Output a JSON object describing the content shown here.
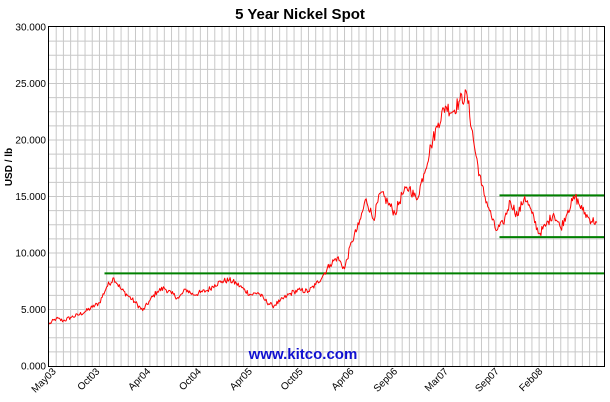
{
  "chart_data": {
    "type": "line",
    "title": "5 Year Nickel Spot",
    "ylabel": "USD / lb",
    "xlabel": "",
    "ylim": [
      0,
      30
    ],
    "y_ticks": [
      "0.000",
      "5.000",
      "10.000",
      "15.000",
      "20.000",
      "25.000",
      "30.000"
    ],
    "x_ticks": [
      "May03",
      "Oct03",
      "Apr04",
      "Oct04",
      "Apr05",
      "Oct05",
      "Apr06",
      "Sep06",
      "Mar07",
      "Sep07",
      "Feb08"
    ],
    "grid": true,
    "colors": {
      "series": "#ff0000",
      "support": "#008000",
      "grid": "#c8c8c8",
      "watermark": "#1010d0"
    },
    "watermark": "www.kitco.com",
    "series": [
      {
        "values": [
          [
            0,
            3.7
          ],
          [
            1,
            4.2
          ],
          [
            2,
            4.0
          ],
          [
            3,
            4.3
          ],
          [
            4,
            4.5
          ],
          [
            5,
            4.8
          ],
          [
            6,
            5.2
          ],
          [
            7,
            5.6
          ],
          [
            8,
            7.0
          ],
          [
            9,
            7.8
          ],
          [
            10,
            6.8
          ],
          [
            11,
            6.2
          ],
          [
            12,
            5.6
          ],
          [
            13,
            4.9
          ],
          [
            14,
            5.8
          ],
          [
            15,
            6.6
          ],
          [
            16,
            6.9
          ],
          [
            17,
            6.4
          ],
          [
            18,
            6.0
          ],
          [
            19,
            6.8
          ],
          [
            20,
            6.3
          ],
          [
            21,
            6.5
          ],
          [
            22,
            6.7
          ],
          [
            23,
            7.2
          ],
          [
            24,
            7.5
          ],
          [
            25,
            7.6
          ],
          [
            26,
            7.3
          ],
          [
            27,
            6.8
          ],
          [
            28,
            6.3
          ],
          [
            29,
            6.5
          ],
          [
            30,
            5.8
          ],
          [
            31,
            5.3
          ],
          [
            32,
            5.7
          ],
          [
            33,
            6.2
          ],
          [
            34,
            6.6
          ],
          [
            35,
            6.7
          ],
          [
            36,
            6.6
          ],
          [
            37,
            7.2
          ],
          [
            38,
            8.0
          ],
          [
            39,
            9.0
          ],
          [
            40,
            9.6
          ],
          [
            41,
            8.6
          ],
          [
            42,
            11.0
          ],
          [
            43,
            12.5
          ],
          [
            44,
            14.8
          ],
          [
            45,
            13.0
          ],
          [
            46,
            15.3
          ],
          [
            47,
            14.5
          ],
          [
            48,
            13.5
          ],
          [
            49,
            15.2
          ],
          [
            50,
            15.8
          ],
          [
            51,
            14.7
          ],
          [
            52,
            17.0
          ],
          [
            53,
            19.5
          ],
          [
            54,
            21.5
          ],
          [
            55,
            23.0
          ],
          [
            56,
            22.5
          ],
          [
            57,
            23.5
          ],
          [
            58,
            24.0
          ],
          [
            59,
            19.5
          ],
          [
            60,
            16.0
          ],
          [
            61,
            14.0
          ],
          [
            62,
            12.0
          ],
          [
            63,
            12.6
          ],
          [
            64,
            14.6
          ],
          [
            65,
            13.3
          ],
          [
            66,
            15.0
          ],
          [
            67,
            13.5
          ],
          [
            68,
            11.7
          ],
          [
            69,
            12.5
          ],
          [
            70,
            13.5
          ],
          [
            71,
            12.2
          ],
          [
            72,
            13.8
          ],
          [
            73,
            15.0
          ],
          [
            74,
            13.8
          ],
          [
            75,
            13.0
          ],
          [
            76,
            12.7
          ]
        ]
      }
    ],
    "support_lines": [
      {
        "y": 8.2,
        "x_start": 7.7,
        "x_end": 77
      },
      {
        "y": 15.1,
        "x_start": 62.5,
        "x_end": 77
      },
      {
        "y": 11.4,
        "x_start": 62.5,
        "x_end": 77
      }
    ]
  }
}
